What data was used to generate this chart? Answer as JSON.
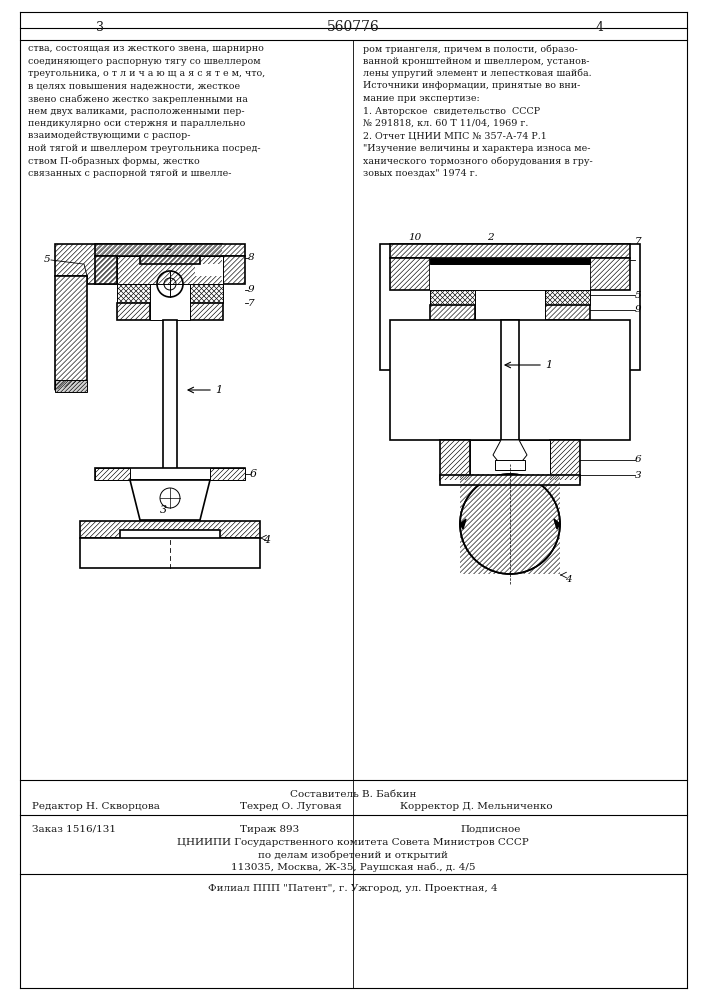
{
  "page_number_left": "3",
  "page_number_center": "560776",
  "page_number_right": "4",
  "text_left_col": [
    "ства, состоящая из жесткого звена, шарнирно",
    "соединяющего распорную тягу со швеллером",
    "треугольника, о т л и ч а ю щ а я с я т е м, что,",
    "в целях повышения надежности, жесткое",
    "звено снабжено жестко закрепленными на",
    "нем двух валиками, расположенными пер-",
    "пендикулярно оси стержня и параллельно",
    "взаимодействующими с распор-",
    "ной тягой и швеллером треугольника посред-",
    "ством П-образных формы, жестко",
    "связанных с распорной тягой и швелле-"
  ],
  "text_right_col": [
    "ром триангеля, причем в полости, образо-",
    "ванной кронштейном и швеллером, установ-",
    "лены упругий элемент и лепестковая шайба.",
    "Источники информации, принятые во вни-",
    "мание при экспертизе:",
    "1. Авторское  свидетельство  СССР",
    "№ 291818, кл. 60 Т 11/04, 1969 г.",
    "2. Отчет ЦНИИ МПС № 357-А-74 Р.1",
    "\"Изучение величины и характера износа ме-",
    "ханического тормозного оборудования в гру-",
    "зовых поездах\" 1974 г."
  ],
  "footer_composer": "Составитель В. Бабкин",
  "footer_editor": "Редактор Н. Скворцова",
  "footer_tech": "Техред О. Луговая",
  "footer_corrector": "Корректор Д. Мельниченко",
  "footer_order": "Заказ 1516/131",
  "footer_tirazh": "Тираж 893",
  "footer_podpis": "Подписное",
  "footer_cniipі": "ЦНИИПИ Государственного комитета Совета Министров СССР",
  "footer_po_delam": "по делам изобретений и открытий",
  "footer_address": "113035, Москва, Ж-35, Раушская наб., д. 4/5",
  "footer_filial": "Филиал ППП \"Патент\", г. Ужгород, ул. Проектная, 4",
  "bg_color": "#ffffff",
  "line_color": "#000000",
  "text_color": "#1a1a1a"
}
